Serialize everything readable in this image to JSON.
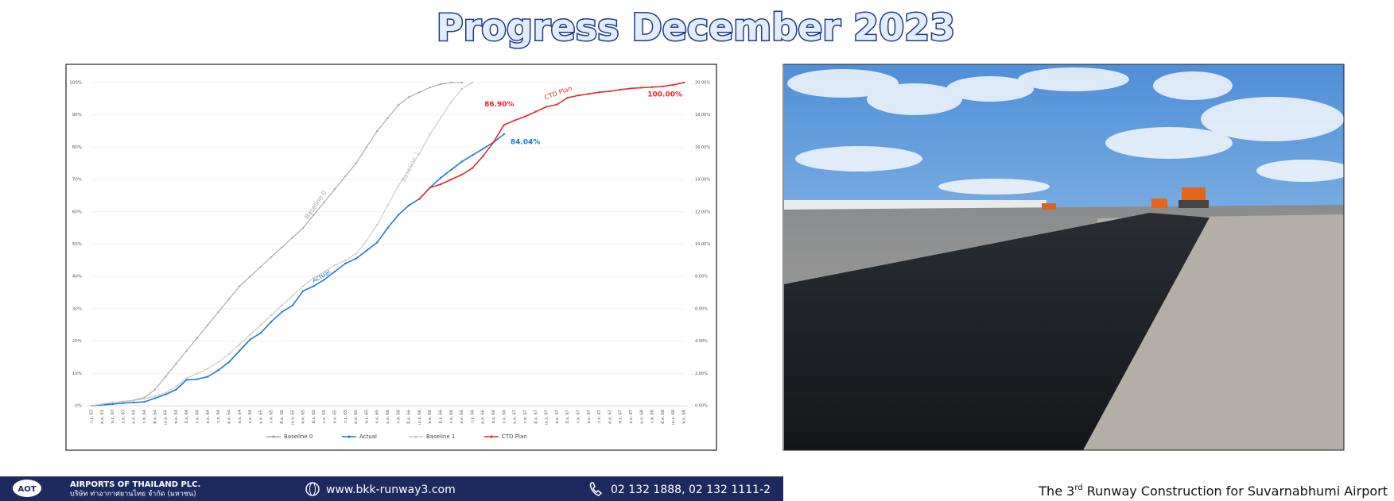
{
  "title": "Progress December 2023",
  "footer": {
    "logo": "AOT",
    "company_en": "AIRPORTS OF THAILAND PLC.",
    "company_th": "บริษัท ท่าอากาศยานไทย จำกัด (มหาชน)",
    "website": "www.bkk-runway3.com",
    "phone": "02 132 1888, 02 132 1111-2",
    "tagline": [
      "The 3",
      "rd",
      " Runway Construction for Suvarnabhumi Airport"
    ]
  },
  "chart_data": {
    "type": "line",
    "grid": true,
    "legend": "bottom",
    "categories": [
      "ก.ย. 63",
      "ต.ค. 63",
      "พ.ย. 63",
      "ธ.ค. 63",
      "ม.ค. 64",
      "ก.พ. 64",
      "มี.ค. 64",
      "เม.ย. 64",
      "พ.ค. 64",
      "มิ.ย. 64",
      "ก.ค. 64",
      "ส.ค. 64",
      "ก.ย. 64",
      "ต.ค. 64",
      "พ.ย. 64",
      "ธ.ค. 64",
      "ม.ค. 65",
      "ก.พ. 65",
      "มี.ค. 65",
      "เม.ย. 65",
      "พ.ค. 65",
      "มิ.ย. 65",
      "ก.ค. 65",
      "ส.ค. 65",
      "ก.ย. 65",
      "ต.ค. 65",
      "พ.ย. 65",
      "ธ.ค. 65",
      "ม.ค. 66",
      "ก.พ. 66",
      "มี.ค. 66",
      "เม.ย. 66",
      "พ.ค. 66",
      "มิ.ย. 66",
      "ก.ค. 66",
      "ส.ค. 66",
      "ก.ย. 66",
      "ต.ค. 66",
      "พ.ย. 66",
      "ธ.ค. 66",
      "ม.ค. 67",
      "ก.พ. 67",
      "มี.ค. 67",
      "เม.ย. 67",
      "พ.ค. 67",
      "มิ.ย. 67",
      "ก.ค. 67",
      "ส.ค. 67",
      "ก.ย. 67",
      "ต.ค. 67",
      "พ.ย. 67",
      "ธ.ค. 67",
      "ม.ค. 68",
      "ก.พ. 68",
      "มี.ค. 68",
      "เม.ย. 68",
      "พ.ค. 68"
    ],
    "series": [
      {
        "name": "Baseline 0",
        "color": "#a6a6a6",
        "values": [
          0,
          0.5,
          1,
          1.3,
          1.7,
          2.5,
          5,
          9,
          13,
          17,
          21,
          25,
          29,
          33,
          37,
          40,
          43,
          46,
          49,
          52,
          55,
          59,
          63,
          67,
          71,
          75,
          80,
          85,
          89,
          93,
          95.5,
          97,
          98.5,
          99.5,
          100,
          100,
          null,
          null,
          null,
          null,
          null,
          null,
          null,
          null,
          null,
          null,
          null,
          null,
          null,
          null,
          null,
          null,
          null,
          null,
          null,
          null,
          null
        ]
      },
      {
        "name": "Actual",
        "color": "#1f78d1",
        "values": [
          0,
          0.3,
          0.5,
          0.8,
          1,
          1.2,
          2.3,
          3.5,
          5,
          8,
          8.2,
          9,
          11,
          13.5,
          17,
          20.5,
          22.5,
          26,
          29,
          31,
          35.5,
          37,
          39,
          41.5,
          44,
          45.5,
          48,
          50.5,
          55,
          59,
          62,
          64,
          67.5,
          70.5,
          73,
          75.5,
          77.5,
          79.5,
          81.5,
          84.04,
          null,
          null,
          null,
          null,
          null,
          null,
          null,
          null,
          null,
          null,
          null,
          null,
          null,
          null,
          null,
          null,
          null
        ],
        "value_labels": {
          "39": "84.04%"
        }
      },
      {
        "name": "Baseline 1",
        "color": "#c9c9c9",
        "values": [
          0,
          0.5,
          1,
          1.2,
          1.6,
          2.2,
          3,
          4,
          6,
          8.5,
          10,
          11.5,
          13.5,
          16,
          19,
          22,
          25,
          28,
          31,
          34,
          37,
          39.5,
          41.5,
          43.5,
          45,
          47,
          51,
          56,
          62,
          68,
          73,
          78,
          84,
          89,
          94,
          98,
          100,
          null,
          null,
          null,
          null,
          null,
          null,
          null,
          null,
          null,
          null,
          null,
          null,
          null,
          null,
          null,
          null,
          null,
          null,
          null,
          null
        ]
      },
      {
        "name": "CTD Plan",
        "color": "#e8262a",
        "values": [
          null,
          null,
          null,
          null,
          null,
          null,
          null,
          null,
          null,
          null,
          null,
          null,
          null,
          null,
          null,
          null,
          null,
          null,
          null,
          null,
          null,
          null,
          null,
          null,
          null,
          null,
          null,
          null,
          null,
          null,
          null,
          64,
          67.5,
          68.5,
          70,
          71.5,
          73.5,
          77.2,
          81.5,
          86.9,
          88.3,
          89.5,
          91,
          92.5,
          93.2,
          95.3,
          96,
          96.5,
          97,
          97.3,
          97.8,
          98.2,
          98.4,
          98.6,
          98.8,
          99.3,
          100
        ],
        "value_labels": {
          "39": "86.90%",
          "56": "100.00%"
        }
      }
    ],
    "ylim": [
      0,
      100
    ],
    "yticks": [
      {
        "value": 0,
        "label": "0%"
      },
      {
        "value": 10,
        "label": "10%"
      },
      {
        "value": 20,
        "label": "20%"
      },
      {
        "value": 30,
        "label": "30%"
      },
      {
        "value": 40,
        "label": "40%"
      },
      {
        "value": 50,
        "label": "50%"
      },
      {
        "value": 60,
        "label": "60%"
      },
      {
        "value": 70,
        "label": "70%"
      },
      {
        "value": 80,
        "label": "80%"
      },
      {
        "value": 90,
        "label": "90%"
      },
      {
        "value": 100,
        "label": "100%"
      }
    ],
    "y2lim": [
      0,
      20
    ],
    "y2ticks": [
      {
        "value": 0,
        "label": "0.00%"
      },
      {
        "value": 2,
        "label": "2.00%"
      },
      {
        "value": 4,
        "label": "4.00%"
      },
      {
        "value": 6,
        "label": "6.00%"
      },
      {
        "value": 8,
        "label": "8.00%"
      },
      {
        "value": 10,
        "label": "10.00%"
      },
      {
        "value": 12,
        "label": "12.00%"
      },
      {
        "value": 14,
        "label": "14.00%"
      },
      {
        "value": 16,
        "label": "16.00%"
      },
      {
        "value": 18,
        "label": "18.00%"
      },
      {
        "value": 20,
        "label": "20.00%"
      }
    ]
  }
}
